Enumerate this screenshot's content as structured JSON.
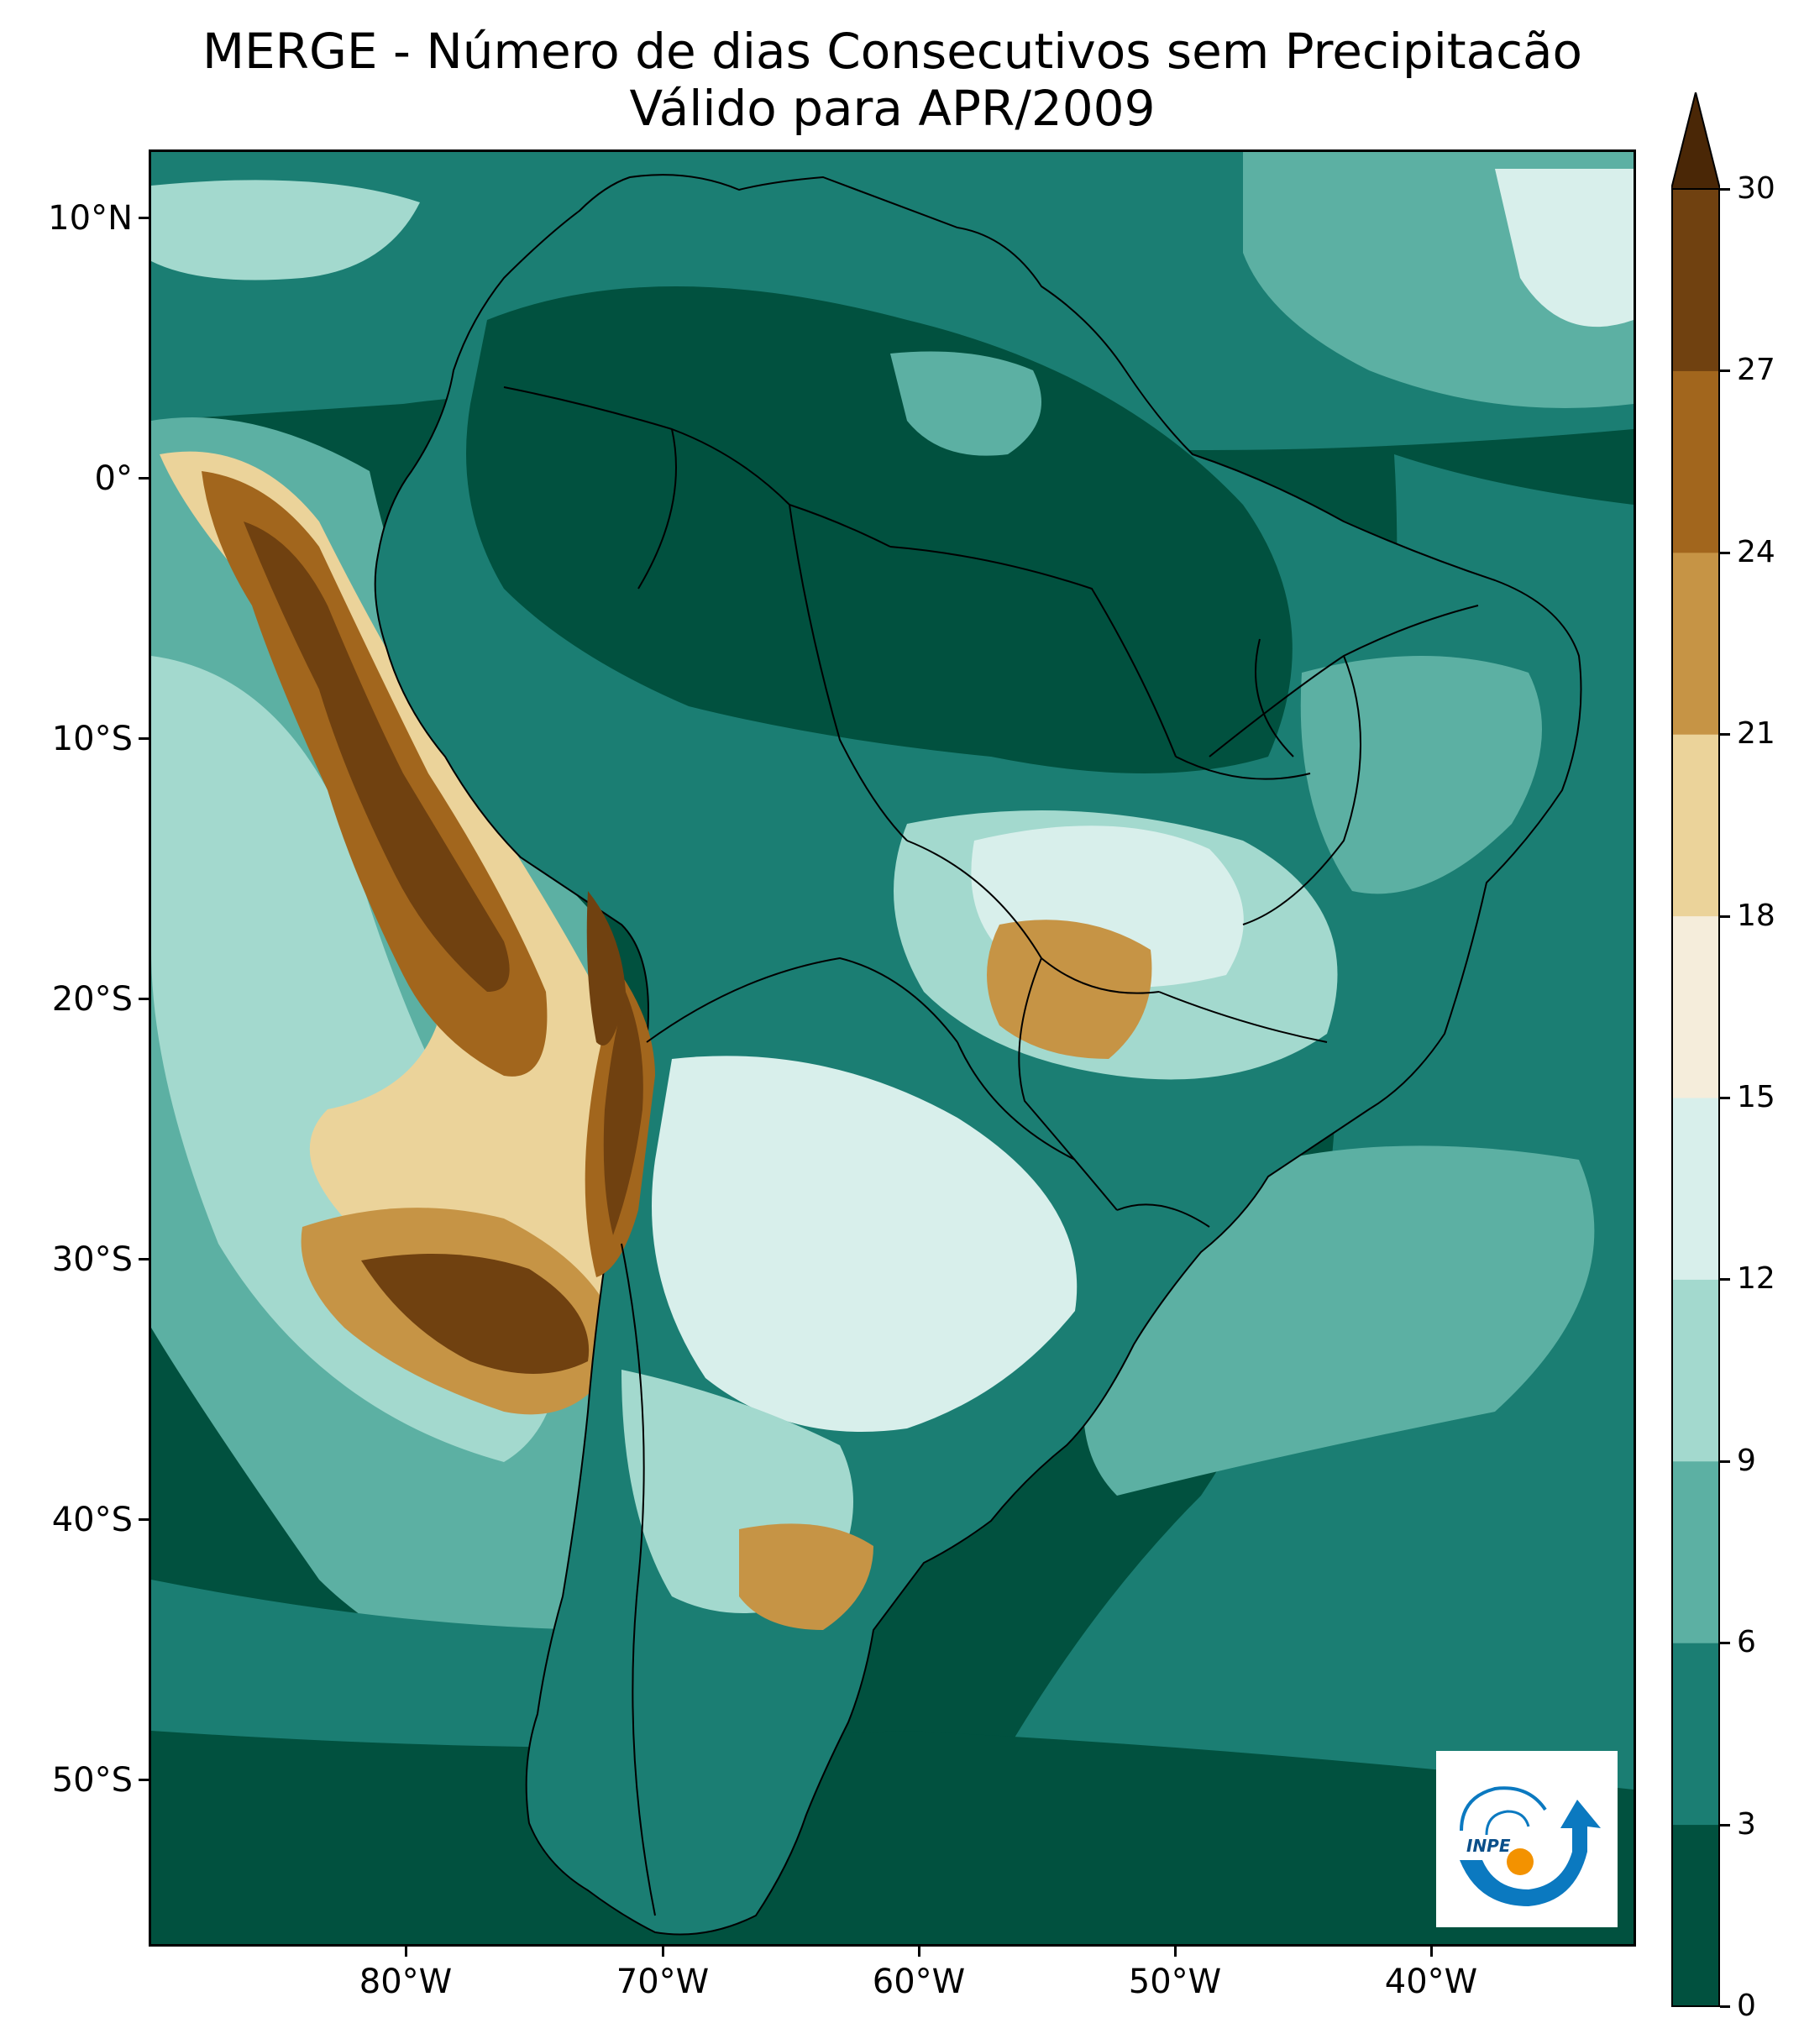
{
  "title": {
    "line1": "MERGE - Número de dias Consecutivos sem Precipitacão",
    "line2": "Válido para APR/2009"
  },
  "axes": {
    "lat_labels": [
      "10°N",
      "0°",
      "10°S",
      "20°S",
      "30°S",
      "40°S",
      "50°S"
    ],
    "lon_labels": [
      "80°W",
      "70°W",
      "60°W",
      "50°W",
      "40°W"
    ]
  },
  "colorbar": {
    "levels": [
      "0",
      "3",
      "6",
      "9",
      "12",
      "15",
      "18",
      "21",
      "24",
      "27",
      "30"
    ],
    "colors": [
      "#01513f",
      "#1b7e73",
      "#5cb0a3",
      "#a3d9ce",
      "#d8efeb",
      "#f5eddb",
      "#ebd39a",
      "#c69445",
      "#a2661d",
      "#704110"
    ],
    "extend": "max",
    "extend_color": "#4a2706"
  },
  "map": {
    "region": "South America",
    "lon_range": [
      -90,
      -32
    ],
    "lat_range": [
      -56,
      13
    ],
    "ocean_base_color": "#01513f",
    "land_fill_color": "#1b7e73",
    "border_color": "#000000"
  },
  "logo": {
    "text": "INPE",
    "icon": "inpe-logo-icon",
    "blue": "#0b79c0",
    "orange": "#f39200"
  }
}
